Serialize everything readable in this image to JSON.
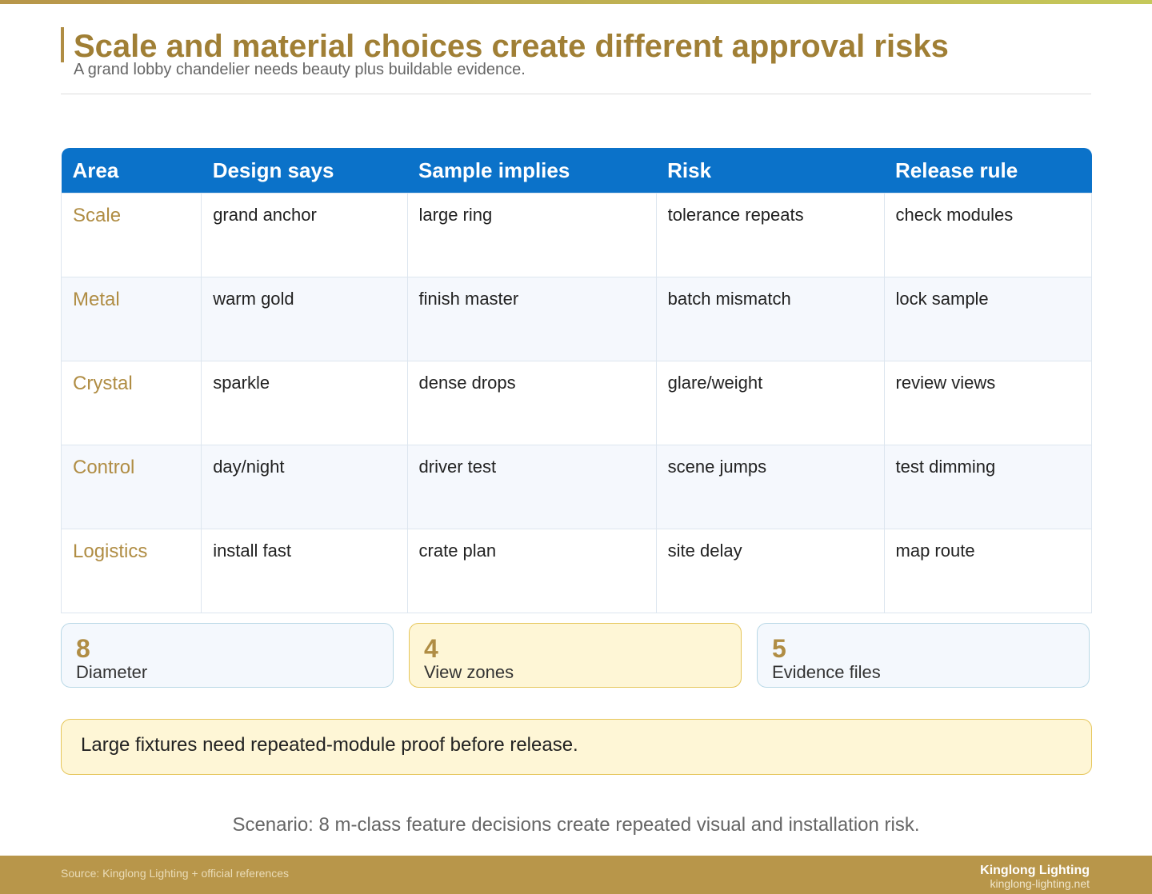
{
  "header": {
    "title": "Scale and material choices create different approval risks",
    "subtitle": "A grand lobby chandelier needs beauty plus buildable evidence."
  },
  "table": {
    "columns": [
      "Area",
      "Design says",
      "Sample implies",
      "Risk",
      "Release rule"
    ],
    "rows": [
      [
        "Scale",
        "grand anchor",
        "large ring",
        "tolerance repeats",
        "check modules"
      ],
      [
        "Metal",
        "warm gold",
        "finish master",
        "batch mismatch",
        "lock sample"
      ],
      [
        "Crystal",
        "sparkle",
        "dense drops",
        "glare/weight",
        "review views"
      ],
      [
        "Control",
        "day/night",
        "driver test",
        "scene jumps",
        "test dimming"
      ],
      [
        "Logistics",
        "install fast",
        "crate plan",
        "site delay",
        "map route"
      ]
    ]
  },
  "stats": [
    {
      "value": 8,
      "label": "Diameter"
    },
    {
      "value": 4,
      "label": "View zones"
    },
    {
      "value": 5,
      "label": "Evidence files"
    }
  ],
  "callout": "Large fixtures need repeated-module proof before release.",
  "scenario": "Scenario: 8 m-class feature decisions create repeated visual and installation risk.",
  "footer": {
    "source": "Source: Kinglong Lighting + official references",
    "brand": "Kinglong Lighting",
    "url": "kinglong-lighting.net"
  }
}
